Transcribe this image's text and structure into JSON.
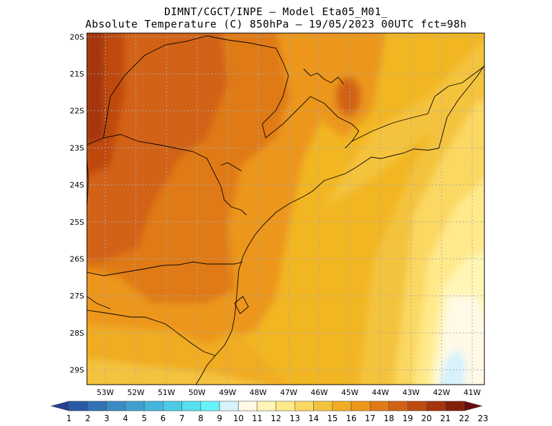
{
  "title": {
    "line1": "DIMNT/CGCT/INPE –  Model Eta05_M01_",
    "line2": "Absolute Temperature (C) 850hPa –  19/05/2023 00UTC fct=98h"
  },
  "map": {
    "lat_labels": [
      "20S",
      "21S",
      "22S",
      "23S",
      "24S",
      "25S",
      "26S",
      "27S",
      "28S",
      "29S"
    ],
    "lat_values": [
      -20,
      -21,
      -22,
      -23,
      -24,
      -25,
      -26,
      -27,
      -28,
      -29
    ],
    "lon_labels": [
      "53W",
      "52W",
      "51W",
      "50W",
      "49W",
      "48W",
      "47W",
      "46W",
      "45W",
      "44W",
      "43W",
      "42W",
      "41W"
    ],
    "lon_values": [
      -53,
      -52,
      -51,
      -50,
      -49,
      -48,
      -47,
      -46,
      -45,
      -44,
      -43,
      -42,
      -41
    ],
    "lat_range": [
      -29.4,
      -19.9
    ],
    "lon_range": [
      -53.6,
      -40.6
    ]
  },
  "colorbar": {
    "labels": [
      "1",
      "2",
      "3",
      "4",
      "5",
      "6",
      "7",
      "8",
      "9",
      "10",
      "11",
      "12",
      "13",
      "14",
      "15",
      "16",
      "17",
      "18",
      "19",
      "20",
      "21",
      "22",
      "23"
    ],
    "colors": [
      "#23408f",
      "#2a5aa6",
      "#3173b5",
      "#3a8bc3",
      "#3fa0cf",
      "#44b5dc",
      "#4ccae6",
      "#55dff0",
      "#66f3fb",
      "#d6f2fb",
      "#fff9e6",
      "#fff5b5",
      "#ffe98a",
      "#fbd862",
      "#f4c33e",
      "#f0ac22",
      "#ec961a",
      "#e07a16",
      "#d26213",
      "#bf4a0f",
      "#a4340c",
      "#82200a",
      "#640d0c"
    ]
  }
}
